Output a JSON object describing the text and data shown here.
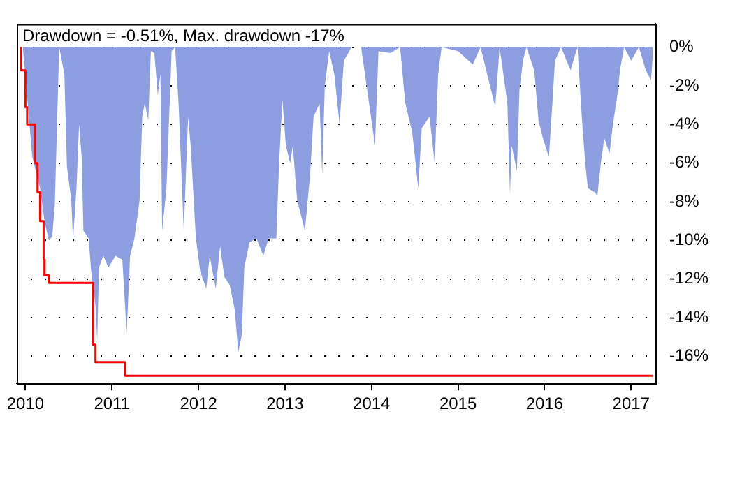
{
  "chart_data": {
    "type": "area",
    "title": "Drawdown = -0.51%, Max. drawdown -17%",
    "xlim": [
      2009.9,
      2017.28
    ],
    "xticks": [
      2010,
      2011,
      2012,
      2013,
      2014,
      2015,
      2016,
      2017
    ],
    "ylim": [
      -17.4,
      1.2
    ],
    "yticks": [
      {
        "value": 0,
        "label": "0%"
      },
      {
        "value": -2,
        "label": "-2%"
      },
      {
        "value": -4,
        "label": "-4%"
      },
      {
        "value": -6,
        "label": "-6%"
      },
      {
        "value": -8,
        "label": "-8%"
      },
      {
        "value": -10,
        "label": "-10%"
      },
      {
        "value": -12,
        "label": "-12%"
      },
      {
        "value": -14,
        "label": "-14%"
      },
      {
        "value": -16,
        "label": "-16%"
      }
    ],
    "grid": "y",
    "legend": false,
    "series": [
      {
        "color": "#8c9ee0",
        "x": [
          2009.97,
          2010.08,
          2010.17,
          2010.22,
          2010.27,
          2010.31,
          2010.34,
          2010.37,
          2010.39,
          2010.45,
          2010.48,
          2010.53,
          2010.55,
          2010.59,
          2010.62,
          2010.65,
          2010.67,
          2010.73,
          2010.76,
          2010.81,
          2010.83,
          2010.85,
          2010.9,
          2010.96,
          2011.04,
          2011.12,
          2011.17,
          2011.21,
          2011.26,
          2011.32,
          2011.35,
          2011.38,
          2011.42,
          2011.45,
          2011.49,
          2011.53,
          2011.56,
          2011.58,
          2011.63,
          2011.69,
          2011.73,
          2011.77,
          2011.83,
          2011.88,
          2011.91,
          2011.97,
          2012.02,
          2012.09,
          2012.13,
          2012.2,
          2012.25,
          2012.3,
          2012.36,
          2012.42,
          2012.46,
          2012.5,
          2012.53,
          2012.59,
          2012.67,
          2012.75,
          2012.81,
          2012.9,
          2012.93,
          2012.97,
          2013.01,
          2013.06,
          2013.09,
          2013.14,
          2013.23,
          2013.29,
          2013.33,
          2013.4,
          2013.43,
          2013.46,
          2013.51,
          2013.57,
          2013.63,
          2013.68,
          2013.77,
          2013.88,
          2014.04,
          2014.08,
          2014.22,
          2014.33,
          2014.39,
          2014.47,
          2014.54,
          2014.58,
          2014.67,
          2014.73,
          2014.77,
          2014.81,
          2015.0,
          2015.17,
          2015.26,
          2015.43,
          2015.48,
          2015.57,
          2015.6,
          2015.62,
          2015.68,
          2015.71,
          2015.75,
          2015.79,
          2015.88,
          2015.93,
          2015.98,
          2016.05,
          2016.09,
          2016.12,
          2016.19,
          2016.3,
          2016.38,
          2016.43,
          2016.47,
          2016.5,
          2016.58,
          2016.61,
          2016.65,
          2016.69,
          2016.75,
          2016.79,
          2016.85,
          2016.87,
          2016.92,
          2017.0,
          2017.09,
          2017.17,
          2017.23,
          2017.25
        ],
        "values": [
          0,
          -5.7,
          -7.3,
          -9.0,
          -10.0,
          -9.8,
          -8.1,
          -3.3,
          0,
          -1.4,
          -6.2,
          -7.9,
          -10.0,
          -7.3,
          -4.0,
          -5.7,
          -9.5,
          -9.9,
          -11.6,
          -13.4,
          -15.2,
          -11.4,
          -10.8,
          -11.4,
          -10.8,
          -11.0,
          -14.8,
          -10.8,
          -9.9,
          -7.9,
          -3.6,
          -2.9,
          -3.8,
          -0.2,
          -0.3,
          -2.5,
          -1.4,
          -9.5,
          -7.3,
          -0.2,
          0,
          -2.9,
          -9.5,
          -3.6,
          -5.1,
          -9.9,
          -11.6,
          -12.5,
          -10.8,
          -12.5,
          -10.3,
          -11.9,
          -12.3,
          -13.6,
          -15.8,
          -14.9,
          -11.4,
          -10.1,
          -9.9,
          -10.8,
          -9.9,
          -9.9,
          -6.2,
          -2.7,
          -5.1,
          -6.0,
          -5.1,
          -7.9,
          -9.5,
          -6.6,
          -3.6,
          -2.9,
          -6.6,
          -2.0,
          -0.2,
          -1.4,
          -4.0,
          -0.7,
          0,
          0,
          -5.1,
          -0.2,
          -0.3,
          0,
          -2.9,
          -4.4,
          -7.3,
          -4.2,
          -3.6,
          -6.0,
          -1.4,
          0,
          -0.2,
          -0.9,
          0,
          -3.1,
          0,
          -2.9,
          -7.6,
          -5.1,
          -6.4,
          -2.2,
          -0.7,
          0,
          -1.2,
          -3.8,
          -4.7,
          -5.7,
          -2.9,
          -0.7,
          0,
          -1.2,
          0,
          -3.6,
          -6.0,
          -7.3,
          -7.5,
          -7.7,
          -6.0,
          -4.7,
          -5.5,
          -4.0,
          -2.2,
          -1.2,
          0,
          -0.7,
          0,
          -1.2,
          -1.7,
          -0.5
        ]
      },
      {
        "type": "step",
        "color": "#ff0000",
        "x": [
          2009.95,
          2010.0,
          2010.02,
          2010.11,
          2010.14,
          2010.17,
          2010.21,
          2010.22,
          2010.27,
          2010.78,
          2010.81,
          2011.15,
          2012.45,
          2017.25
        ],
        "values": [
          0,
          -1.2,
          -3.1,
          -4.0,
          -6.0,
          -7.5,
          -9.0,
          -11.0,
          -11.8,
          -12.2,
          -15.4,
          -16.3,
          -17.0,
          -17.0
        ]
      }
    ]
  }
}
